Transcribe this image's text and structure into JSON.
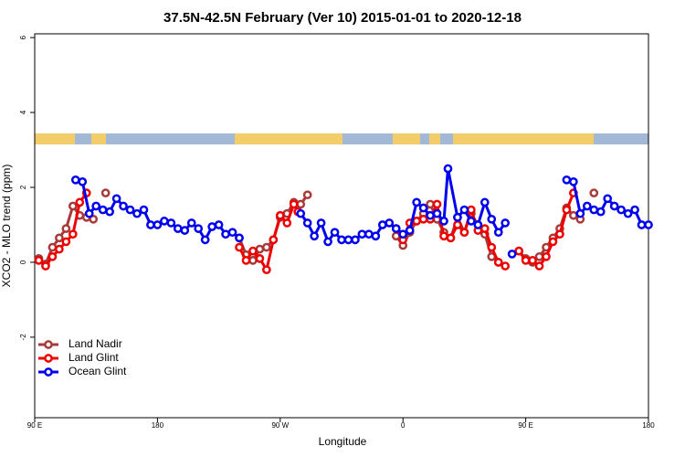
{
  "chart_data": {
    "type": "line",
    "title": "37.5N-42.5N February (Ver 10)   2015-01-01 to 2020-12-18",
    "x_label": "Longitude",
    "y_label": "XCO2 - MLO trend (ppm)",
    "xlim": [
      90,
      540
    ],
    "ylim": [
      -4.15,
      6.1
    ],
    "xticks": [
      {
        "value": 90,
        "label": "90 E"
      },
      180,
      {
        "value": 270,
        "label": "90 W"
      },
      {
        "value": 360,
        "label": "0"
      },
      {
        "value": 450,
        "label": "90 E"
      },
      {
        "value": 540,
        "label": "180"
      }
    ],
    "yticks": [
      -2,
      0,
      2,
      4,
      6
    ],
    "legend": "bottom-left",
    "series": [
      {
        "name": "Land Nadir",
        "color": "#a83a3a",
        "x": [
          93,
          98,
          103,
          108,
          113,
          118,
          123,
          128,
          133,
          null,
          142,
          null,
          240,
          245,
          250,
          255,
          260,
          265,
          270,
          275,
          280,
          285,
          290,
          null,
          355,
          360,
          365,
          370,
          375,
          380,
          385,
          390,
          395,
          400,
          405,
          410,
          415,
          420,
          425,
          430,
          null,
          445,
          450,
          455,
          460,
          465,
          470,
          475,
          480,
          485,
          490,
          null,
          500
        ],
        "values": [
          0.1,
          -0.05,
          0.4,
          0.65,
          0.9,
          1.5,
          1.25,
          1.2,
          1.15,
          null,
          1.85,
          null,
          0.65,
          0.2,
          0.05,
          0.35,
          0.4,
          0.6,
          1.2,
          1.3,
          1.6,
          1.55,
          1.8,
          null,
          0.7,
          0.45,
          0.8,
          1.1,
          1.3,
          1.55,
          1.15,
          0.8,
          0.65,
          1.2,
          0.8,
          1.3,
          1.0,
          0.75,
          0.15,
          0.0,
          null,
          0.3,
          0.1,
          0.0,
          0.15,
          0.4,
          0.65,
          0.9,
          1.45,
          1.25,
          1.15,
          null,
          1.85
        ]
      },
      {
        "name": "Land Glint",
        "color": "#ee0000",
        "x": [
          93,
          98,
          103,
          108,
          113,
          118,
          123,
          128,
          null,
          240,
          245,
          250,
          255,
          260,
          265,
          270,
          275,
          280,
          283,
          null,
          355,
          360,
          365,
          370,
          375,
          380,
          385,
          390,
          395,
          400,
          405,
          410,
          415,
          420,
          425,
          430,
          435,
          null,
          445,
          450,
          455,
          460,
          465,
          470,
          475,
          480,
          485
        ],
        "values": [
          0.05,
          -0.1,
          0.15,
          0.35,
          0.55,
          0.75,
          1.6,
          1.85,
          null,
          0.4,
          0.05,
          0.3,
          0.1,
          -0.2,
          0.6,
          1.25,
          1.05,
          1.55,
          1.35,
          null,
          0.9,
          0.6,
          1.05,
          1.1,
          1.15,
          1.15,
          1.55,
          0.7,
          0.65,
          1.0,
          0.8,
          1.4,
          0.85,
          0.9,
          0.4,
          0.0,
          -0.1,
          null,
          0.3,
          0.05,
          0.05,
          -0.1,
          0.15,
          0.55,
          0.75,
          1.4,
          1.85
        ]
      },
      {
        "name": "Ocean Glint",
        "color": "#0000ee",
        "x": [
          120,
          125,
          130,
          135,
          140,
          145,
          150,
          155,
          160,
          165,
          170,
          175,
          180,
          185,
          190,
          195,
          200,
          205,
          210,
          215,
          220,
          225,
          230,
          235,
          240,
          null,
          285,
          290,
          295,
          300,
          305,
          310,
          315,
          320,
          325,
          330,
          335,
          340,
          345,
          350,
          355,
          360,
          365,
          370,
          375,
          380,
          385,
          390,
          393,
          400,
          405,
          410,
          415,
          420,
          425,
          430,
          435,
          null,
          440,
          null,
          480,
          485,
          490,
          495,
          500,
          505,
          510,
          515,
          520,
          525,
          530,
          535,
          540
        ],
        "values": [
          2.2,
          2.15,
          1.3,
          1.5,
          1.4,
          1.35,
          1.7,
          1.5,
          1.4,
          1.3,
          1.4,
          1.0,
          1.0,
          1.1,
          1.05,
          0.9,
          0.85,
          1.05,
          0.9,
          0.6,
          0.95,
          1.0,
          0.75,
          0.8,
          0.65,
          null,
          1.3,
          1.05,
          0.7,
          1.05,
          0.55,
          0.8,
          0.6,
          0.6,
          0.6,
          0.75,
          0.75,
          0.7,
          1.0,
          1.05,
          0.9,
          0.75,
          0.85,
          1.6,
          1.45,
          1.25,
          1.3,
          1.1,
          2.5,
          1.2,
          1.4,
          1.1,
          1.0,
          1.6,
          1.15,
          0.8,
          1.05,
          null,
          0.22,
          null,
          2.2,
          2.15,
          1.3,
          1.5,
          1.4,
          1.35,
          1.7,
          1.5,
          1.4,
          1.3,
          1.4,
          1.0,
          1.0
        ]
      }
    ]
  }
}
